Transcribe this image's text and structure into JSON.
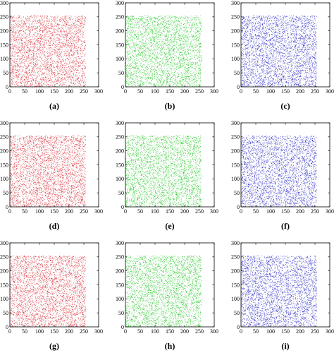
{
  "chart_data": [
    {
      "type": "scatter",
      "caption": "(a)",
      "color": "#d9303a",
      "xlim": [
        0,
        300
      ],
      "ylim": [
        0,
        300
      ],
      "xticks": [
        "0",
        "50",
        "100",
        "150",
        "200",
        "250",
        "300"
      ],
      "yticks": [
        "0",
        "50",
        "100",
        "150",
        "200",
        "250",
        "300"
      ],
      "fill_region": {
        "x": [
          0,
          255
        ],
        "y": [
          0,
          255
        ]
      }
    },
    {
      "type": "scatter",
      "caption": "(b)",
      "color": "#2ccb2c",
      "xlim": [
        0,
        300
      ],
      "ylim": [
        0,
        300
      ],
      "xticks": [
        "0",
        "50",
        "100",
        "150",
        "200",
        "250",
        "300"
      ],
      "yticks": [
        "0",
        "50",
        "100",
        "150",
        "200",
        "250",
        "300"
      ],
      "fill_region": {
        "x": [
          0,
          255
        ],
        "y": [
          0,
          255
        ]
      }
    },
    {
      "type": "scatter",
      "caption": "(c)",
      "color": "#2f2fc8",
      "xlim": [
        0,
        300
      ],
      "ylim": [
        0,
        300
      ],
      "xticks": [
        "0",
        "50",
        "100",
        "150",
        "200",
        "250",
        "300"
      ],
      "yticks": [
        "0",
        "50",
        "100",
        "150",
        "200",
        "250",
        "300"
      ],
      "fill_region": {
        "x": [
          0,
          255
        ],
        "y": [
          0,
          255
        ]
      }
    },
    {
      "type": "scatter",
      "caption": "(d)",
      "color": "#d9303a",
      "xlim": [
        0,
        300
      ],
      "ylim": [
        0,
        300
      ],
      "xticks": [
        "0",
        "50",
        "100",
        "150",
        "200",
        "250",
        "300"
      ],
      "yticks": [
        "0",
        "50",
        "100",
        "150",
        "200",
        "250",
        "300"
      ],
      "fill_region": {
        "x": [
          0,
          255
        ],
        "y": [
          0,
          255
        ]
      }
    },
    {
      "type": "scatter",
      "caption": "(e)",
      "color": "#2ccb2c",
      "xlim": [
        0,
        300
      ],
      "ylim": [
        0,
        300
      ],
      "xticks": [
        "0",
        "50",
        "100",
        "150",
        "200",
        "250",
        "300"
      ],
      "yticks": [
        "0",
        "50",
        "100",
        "150",
        "200",
        "250",
        "300"
      ],
      "fill_region": {
        "x": [
          0,
          255
        ],
        "y": [
          0,
          255
        ]
      }
    },
    {
      "type": "scatter",
      "caption": "(f)",
      "color": "#2f2fc8",
      "xlim": [
        0,
        300
      ],
      "ylim": [
        0,
        300
      ],
      "xticks": [
        "0",
        "50",
        "100",
        "150",
        "200",
        "250",
        "300"
      ],
      "yticks": [
        "0",
        "50",
        "100",
        "150",
        "200",
        "250",
        "300"
      ],
      "fill_region": {
        "x": [
          0,
          255
        ],
        "y": [
          0,
          255
        ]
      }
    },
    {
      "type": "scatter",
      "caption": "(g)",
      "color": "#d9303a",
      "xlim": [
        0,
        300
      ],
      "ylim": [
        0,
        300
      ],
      "xticks": [
        "0",
        "50",
        "100",
        "150",
        "200",
        "250",
        "300"
      ],
      "yticks": [
        "0",
        "50",
        "100",
        "150",
        "200",
        "250",
        "300"
      ],
      "fill_region": {
        "x": [
          0,
          255
        ],
        "y": [
          0,
          255
        ]
      }
    },
    {
      "type": "scatter",
      "caption": "(h)",
      "color": "#2ccb2c",
      "xlim": [
        0,
        300
      ],
      "ylim": [
        0,
        300
      ],
      "xticks": [
        "0",
        "50",
        "100",
        "150",
        "200",
        "250",
        "300"
      ],
      "yticks": [
        "0",
        "50",
        "100",
        "150",
        "200",
        "250",
        "300"
      ],
      "fill_region": {
        "x": [
          0,
          255
        ],
        "y": [
          0,
          255
        ]
      }
    },
    {
      "type": "scatter",
      "caption": "(i)",
      "color": "#2f2fc8",
      "xlim": [
        0,
        300
      ],
      "ylim": [
        0,
        300
      ],
      "xticks": [
        "0",
        "50",
        "100",
        "150",
        "200",
        "250",
        "300"
      ],
      "yticks": [
        "0",
        "50",
        "100",
        "150",
        "200",
        "250",
        "300"
      ],
      "fill_region": {
        "x": [
          0,
          255
        ],
        "y": [
          0,
          255
        ]
      }
    }
  ]
}
